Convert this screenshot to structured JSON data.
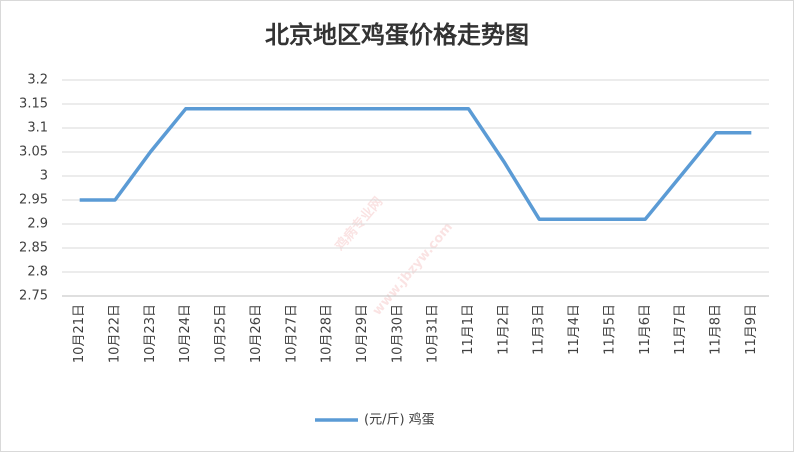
{
  "chart_data": {
    "type": "line",
    "title": "北京地区鸡蛋价格走势图",
    "watermark": [
      "鸡病专业网",
      "www.jbzyw.com"
    ],
    "categories": [
      "10月21日",
      "10月22日",
      "10月23日",
      "10月24日",
      "10月25日",
      "10月26日",
      "10月27日",
      "10月28日",
      "10月29日",
      "10月30日",
      "10月31日",
      "11月1日",
      "11月2日",
      "11月3日",
      "11月4日",
      "11月5日",
      "11月6日",
      "11月7日",
      "11月8日",
      "11月9日"
    ],
    "series": [
      {
        "name": "(元/斤) 鸡蛋",
        "color": "#5b9bd5",
        "values": [
          2.95,
          2.95,
          3.05,
          3.14,
          3.14,
          3.14,
          3.14,
          3.14,
          3.14,
          3.14,
          3.14,
          3.14,
          3.03,
          2.91,
          2.91,
          2.91,
          2.91,
          3.0,
          3.09,
          3.09
        ]
      }
    ],
    "ylim": [
      2.75,
      3.2
    ],
    "yticks": [
      2.75,
      2.8,
      2.85,
      2.9,
      2.95,
      3,
      3.05,
      3.1,
      3.15,
      3.2
    ],
    "grid": true
  }
}
